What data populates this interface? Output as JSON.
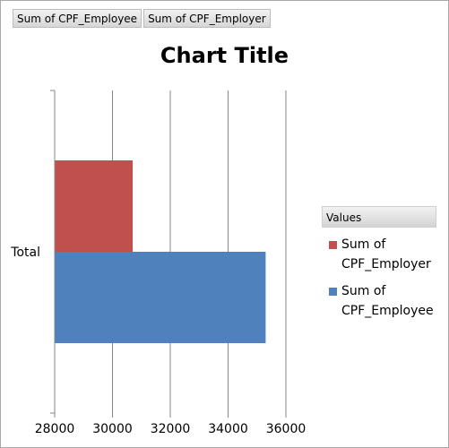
{
  "field_buttons": [
    "Sum of CPF_Employee",
    "Sum of CPF_Employer"
  ],
  "chart_data": {
    "type": "bar",
    "orientation": "horizontal",
    "title": "Chart Title",
    "categories": [
      "Total"
    ],
    "series": [
      {
        "name": "Sum of CPF_Employer",
        "values": [
          30700
        ],
        "color": "#c0504d"
      },
      {
        "name": "Sum of CPF_Employee",
        "values": [
          35300
        ],
        "color": "#4f81bd"
      }
    ],
    "xlim": [
      28000,
      36000
    ],
    "xticks": [
      28000,
      30000,
      32000,
      34000,
      36000
    ],
    "grid": true,
    "legend_title": "Values",
    "legend_position": "right",
    "legend": [
      {
        "line1": "Sum of",
        "line2": "CPF_Employer",
        "color": "#c0504d"
      },
      {
        "line1": "Sum of",
        "line2": "CPF_Employee",
        "color": "#4f81bd"
      }
    ]
  }
}
